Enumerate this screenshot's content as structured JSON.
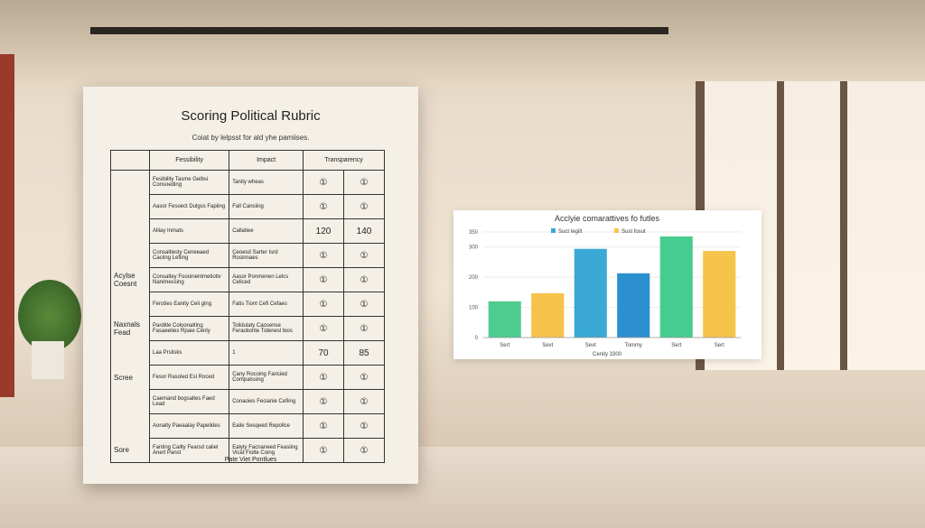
{
  "paper": {
    "title": "Scoring Political Rubric",
    "subtitle": "Coiat by lelpsst for ald yhe pamiises.",
    "table": {
      "headers": [
        "Fessibility",
        "Impact",
        "Transparency"
      ],
      "groups": [
        "Acylse Coesnt",
        "Naxnals Fead",
        "Scree",
        "Sore"
      ],
      "rows": [
        [
          "Fesibility Tasme Gelbsi Consoeding",
          "Tanity wheas",
          "①",
          "①"
        ],
        [
          "Aasor Fesoect Dulgss Fapiing",
          "Fall Cansiing",
          "①",
          "①"
        ],
        [
          "Alliay Inmats",
          "Callatiee",
          120,
          140
        ],
        [
          "Consaltiesty Ceneeaed Caciing Lefiing",
          "Ceoesd Sarter Isrd Rosinnaes",
          "①",
          "①"
        ],
        [
          "Consaltey Foooinentmetiotiv Nanimessing",
          "Aasor Ponmenen Lelcs Celiced",
          "①",
          "①"
        ],
        [
          "Feroties Eanity Celi ging",
          "Fatis Tiont Cefi Cefaes",
          "①",
          "①"
        ],
        [
          "Parditle Coloonatting Fasaeeties Rpaie Cenly",
          "Tolidulaty Caosense Feraolionte Tidenesl bios",
          "①",
          "①"
        ],
        [
          "Laa Prslisks",
          1,
          70,
          85
        ],
        [
          "Fesor Rasoled Esl Roced",
          "Cany Rocoing Faricied Compalssing",
          "①",
          "①"
        ],
        [
          "Caemand bogsaltes Faed Lead",
          "Conaoies Fecianie Cefiing",
          "①",
          "①"
        ],
        [
          "Aonalty Paeaalay Papelides",
          "Eaile Sesqeed Repollce",
          "①",
          "①"
        ],
        [
          "Fanting Cailty Fearsd caliel Anert Panst",
          "Ealyty Facnaneed Feasiing Vicat Fiolte Coing",
          "①",
          "①"
        ]
      ],
      "footer": "Pate Viet Pontlues"
    }
  },
  "chart_data": {
    "type": "bar",
    "title": "Acclyie comarattives fo futles",
    "legend": [
      "Suct tegilt",
      "Sust fosut"
    ],
    "legend_colors": [
      "#3aa9d6",
      "#f6c34b"
    ],
    "categories": [
      "Sert",
      "Sevt",
      "Sevt",
      "Tommy",
      "Sert",
      "Sert"
    ],
    "values": [
      120,
      147,
      294,
      213,
      335,
      287
    ],
    "colors": [
      "#4ecb8f",
      "#f7c24a",
      "#3aa9d6",
      "#2b8fd0",
      "#45cc8e",
      "#f6c34b"
    ],
    "ylim": [
      0,
      350
    ],
    "yticks": [
      0,
      100,
      200,
      300,
      350
    ],
    "footer": "Cenity 3300"
  }
}
